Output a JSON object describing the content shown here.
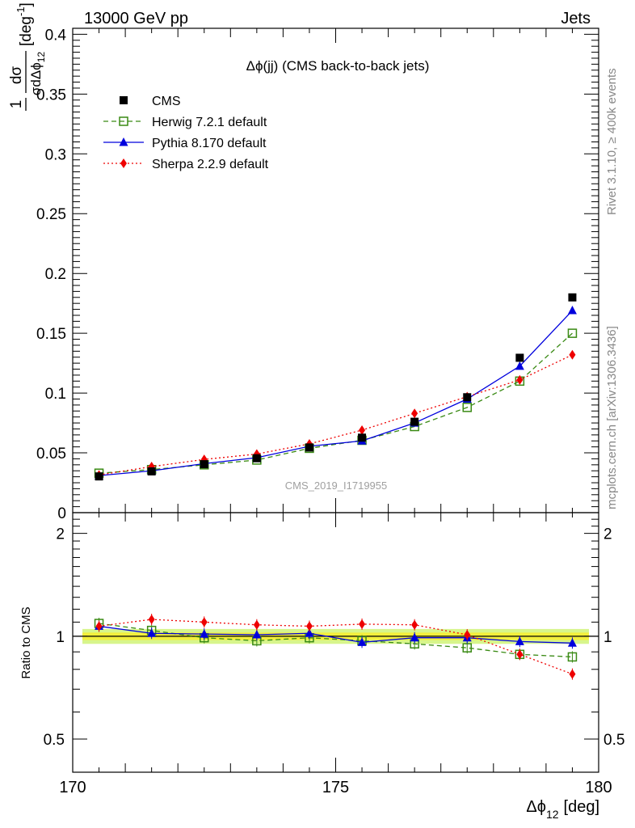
{
  "header": {
    "left": "13000 GeV pp",
    "right": "Jets"
  },
  "side_labels": {
    "rivet": "Rivet 3.1.10, ≥ 400k events",
    "mcplots": "mcplots.cern.ch [arXiv:1306.3436]"
  },
  "main": {
    "title": "Δϕ(jj) (CMS back-to-back jets)",
    "watermark": "CMS_2019_I1719955",
    "ylabel_num": "1",
    "ylabel_frac_num": "dσ",
    "ylabel_den": "σdΔϕ",
    "ylabel_den_sub": "12",
    "ylabel_unit": "[deg",
    "ylabel_unit_sup": "-1",
    "ylabel_unit_close": "]"
  },
  "ratio": {
    "ylabel": "Ratio to CMS"
  },
  "xaxis": {
    "label": "Δϕ",
    "label_sub": "12",
    "label_unit": "[deg]"
  },
  "colors": {
    "cms": "#000000",
    "herwig": "#3a8a14",
    "pythia": "#0000dd",
    "sherpa": "#ee0000",
    "band_inner": "#f3ef3c",
    "band_outer": "#d7f58c"
  },
  "chart_data": [
    {
      "type": "line",
      "panel": "main",
      "xlim": [
        170,
        180
      ],
      "ylim": [
        0,
        0.405
      ],
      "yticks": [
        0,
        0.05,
        0.1,
        0.15,
        0.2,
        0.25,
        0.3,
        0.35,
        0.4
      ],
      "ytick_labels": [
        "0",
        "0.05",
        "0.1",
        "0.15",
        "0.2",
        "0.25",
        "0.3",
        "0.35",
        "0.4"
      ],
      "xticks": [
        170,
        175,
        180
      ],
      "xtick_labels": [
        "170",
        "175",
        "180"
      ],
      "x": [
        170.5,
        171.5,
        172.5,
        173.5,
        174.5,
        175.5,
        176.5,
        177.5,
        178.5,
        179.5
      ],
      "legend_position": "top-left",
      "series": [
        {
          "name": "CMS",
          "key": "cms",
          "marker": "square",
          "line": "none",
          "values": [
            0.0303,
            0.0345,
            0.0405,
            0.0455,
            0.0545,
            0.0627,
            0.076,
            0.0965,
            0.1295,
            0.18
          ]
        },
        {
          "name": "Herwig 7.2.1 default",
          "key": "herwig",
          "marker": "open-square",
          "line": "dashed",
          "values": [
            0.033,
            0.036,
            0.04,
            0.044,
            0.0538,
            0.0605,
            0.072,
            0.088,
            0.11,
            0.15
          ]
        },
        {
          "name": "Pythia 8.170 default",
          "key": "pythia",
          "marker": "triangle",
          "line": "solid",
          "values": [
            0.031,
            0.035,
            0.041,
            0.046,
            0.0555,
            0.06,
            0.075,
            0.095,
            0.1225,
            0.169
          ]
        },
        {
          "name": "Sherpa 2.2.9 default",
          "key": "sherpa",
          "marker": "diamond",
          "line": "dotted",
          "values": [
            0.0315,
            0.0385,
            0.0445,
            0.049,
            0.0575,
            0.069,
            0.083,
            0.097,
            0.111,
            0.132
          ]
        }
      ]
    },
    {
      "type": "line",
      "panel": "ratio",
      "ylabel": "Ratio to CMS",
      "ylim": [
        0.4,
        2.3
      ],
      "log_y": true,
      "yticks": [
        0.5,
        1,
        2
      ],
      "ytick_labels": [
        "0.5",
        "1",
        "2"
      ],
      "x": [
        170.5,
        171.5,
        172.5,
        173.5,
        174.5,
        175.5,
        176.5,
        177.5,
        178.5,
        179.5
      ],
      "series": [
        {
          "name": "Herwig 7.2.1 default",
          "key": "herwig",
          "marker": "open-square",
          "line": "dashed",
          "values": [
            1.09,
            1.04,
            0.99,
            0.97,
            0.99,
            0.97,
            0.95,
            0.925,
            0.885,
            0.87
          ]
        },
        {
          "name": "Pythia 8.170 default",
          "key": "pythia",
          "marker": "triangle",
          "line": "solid",
          "values": [
            1.07,
            1.02,
            1.015,
            1.01,
            1.02,
            0.96,
            0.99,
            0.99,
            0.965,
            0.955
          ]
        },
        {
          "name": "Sherpa 2.2.9 default",
          "key": "sherpa",
          "marker": "diamond",
          "line": "dotted",
          "values": [
            1.07,
            1.12,
            1.1,
            1.08,
            1.07,
            1.085,
            1.08,
            1.01,
            0.885,
            0.775
          ]
        }
      ]
    }
  ]
}
